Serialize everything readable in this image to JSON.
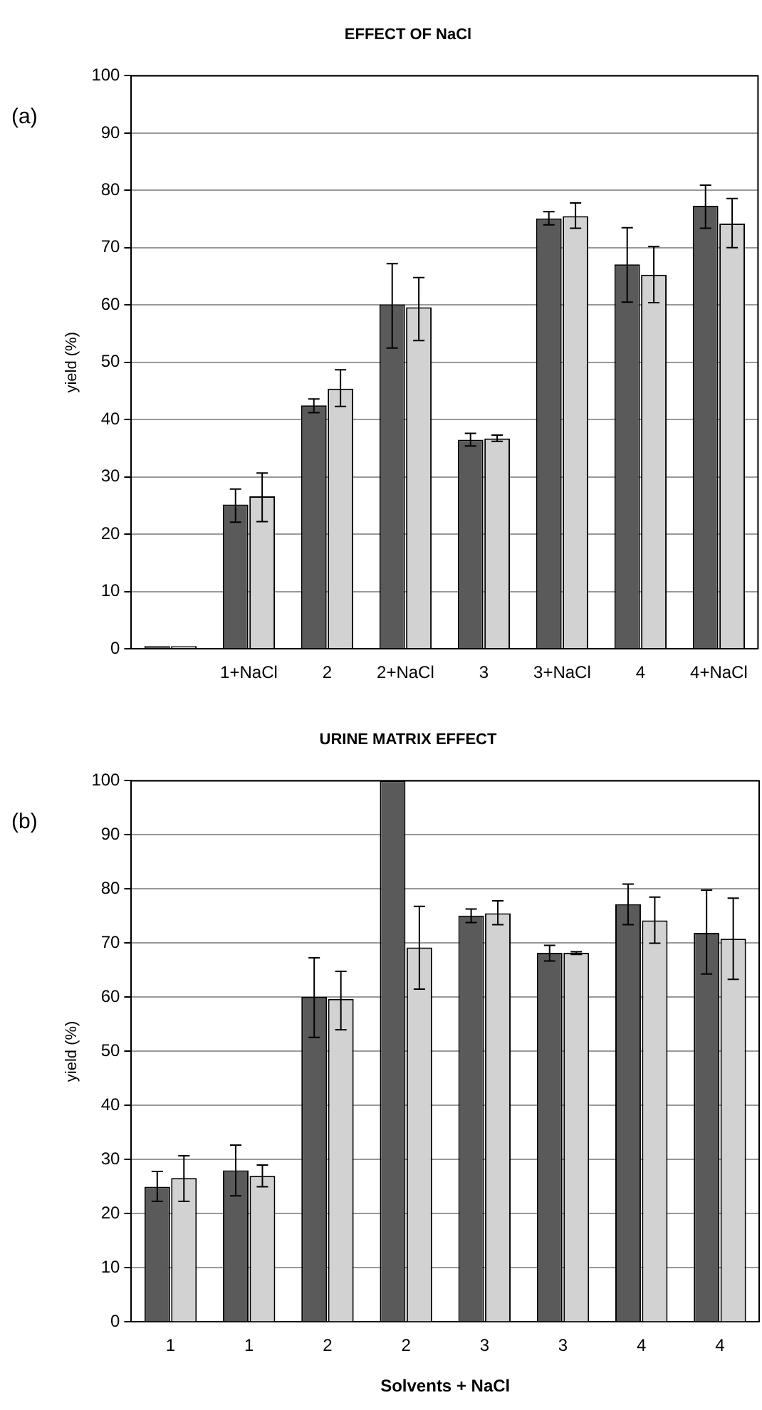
{
  "chart_data": [
    {
      "type": "bar",
      "title": "EFFECT OF NaCl",
      "ylabel": "yield (%)",
      "annotations": [
        "(a)"
      ],
      "categories": [
        null,
        "1+NaCl",
        "2",
        "2+NaCl",
        "3",
        "3+NaCl",
        "4",
        "4+NaCl"
      ],
      "series": [
        {
          "color": "#5a5a5a",
          "values": [
            0.5,
            25.2,
            42.5,
            60.1,
            36.5,
            75.1,
            67.1,
            77.3
          ],
          "errors": [
            null,
            [
              22.1,
              27.9
            ],
            [
              41.2,
              43.6
            ],
            [
              52.5,
              67.2
            ],
            [
              35.4,
              37.6
            ],
            [
              74.0,
              76.3
            ],
            [
              60.5,
              73.5
            ],
            [
              73.4,
              80.9
            ]
          ]
        },
        {
          "color": "#d2d2d2",
          "values": [
            0.5,
            26.6,
            45.4,
            59.6,
            36.7,
            75.5,
            65.3,
            74.2
          ],
          "errors": [
            null,
            [
              22.2,
              30.7
            ],
            [
              42.3,
              48.7
            ],
            [
              53.8,
              64.8
            ],
            [
              36.2,
              37.3
            ],
            [
              73.4,
              77.8
            ],
            [
              60.4,
              70.2
            ],
            [
              70.0,
              78.6
            ]
          ]
        }
      ],
      "ylim": [
        0,
        100
      ],
      "yticks": [
        0,
        10,
        20,
        30,
        40,
        50,
        60,
        70,
        80,
        90,
        100
      ],
      "grid": "y",
      "legend": false
    },
    {
      "type": "bar",
      "title": "URINE MATRIX EFFECT",
      "xlabel": "Solvents + NaCl",
      "ylabel": "yield (%)",
      "annotations": [
        "(b)"
      ],
      "categories": [
        "1",
        "1",
        "2",
        "2",
        "3",
        "3",
        "4",
        "4"
      ],
      "series": [
        {
          "color": "#5a5a5a",
          "values": [
            25.0,
            28.0,
            60.1,
            100,
            75.1,
            68.2,
            77.2,
            71.9
          ],
          "errors": [
            [
              22.3,
              27.8
            ],
            [
              23.3,
              32.7
            ],
            [
              52.6,
              67.3
            ],
            null,
            [
              73.8,
              76.3
            ],
            [
              66.7,
              69.6
            ],
            [
              73.4,
              80.9
            ],
            [
              64.3,
              79.8
            ]
          ]
        },
        {
          "color": "#d2d2d2",
          "values": [
            26.6,
            27.0,
            59.7,
            69.2,
            75.5,
            68.2,
            74.2,
            70.8
          ],
          "errors": [
            [
              22.3,
              30.7
            ],
            [
              25.0,
              29.0
            ],
            [
              54.0,
              64.8
            ],
            [
              61.5,
              76.8
            ],
            [
              73.4,
              77.8
            ],
            [
              67.9,
              68.4
            ],
            [
              70.0,
              78.5
            ],
            [
              63.3,
              78.3
            ]
          ]
        }
      ],
      "ylim": [
        0,
        100
      ],
      "yticks": [
        0,
        10,
        20,
        30,
        40,
        50,
        60,
        70,
        80,
        90,
        100
      ],
      "grid": "y",
      "legend": false
    }
  ]
}
